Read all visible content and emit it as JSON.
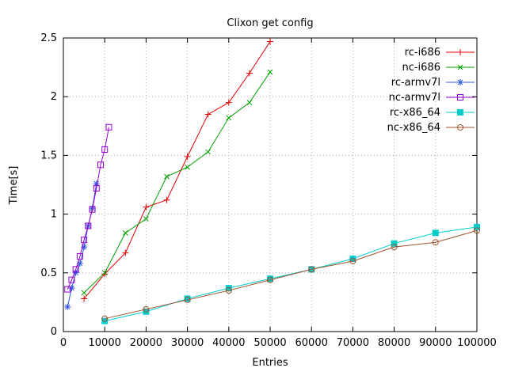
{
  "chart_data": {
    "type": "line",
    "title": "Clixon get config",
    "xlabel": "Entries",
    "ylabel": "Time[s]",
    "xlim": [
      0,
      100000
    ],
    "ylim": [
      0,
      2.5
    ],
    "xticks": [
      0,
      10000,
      20000,
      30000,
      40000,
      50000,
      60000,
      70000,
      80000,
      90000,
      100000
    ],
    "xtick_labels": [
      "0",
      "10000",
      "20000",
      "30000",
      "40000",
      "50000",
      "60000",
      "70000",
      "80000",
      "90000",
      "100000"
    ],
    "yticks": [
      0,
      0.5,
      1,
      1.5,
      2,
      2.5
    ],
    "ytick_labels": [
      "0",
      "0.5",
      "1",
      "1.5",
      "2",
      "2.5"
    ],
    "grid": true,
    "legend_position": "top-right",
    "series": [
      {
        "name": "rc-i686",
        "color": "#e00000",
        "marker": "plus",
        "x": [
          5000,
          10000,
          15000,
          20000,
          25000,
          30000,
          35000,
          40000,
          45000,
          50000
        ],
        "y": [
          0.28,
          0.49,
          0.67,
          1.06,
          1.12,
          1.49,
          1.85,
          1.95,
          2.2,
          2.47
        ]
      },
      {
        "name": "nc-i686",
        "color": "#00a000",
        "marker": "cross",
        "x": [
          5000,
          10000,
          15000,
          20000,
          25000,
          30000,
          35000,
          40000,
          45000,
          50000
        ],
        "y": [
          0.33,
          0.5,
          0.84,
          0.96,
          1.32,
          1.4,
          1.53,
          1.82,
          1.95,
          2.21
        ]
      },
      {
        "name": "rc-armv7l",
        "color": "#3355dd",
        "marker": "asterisk",
        "x": [
          1000,
          2000,
          3000,
          4000,
          5000,
          6000,
          7000,
          8000
        ],
        "y": [
          0.21,
          0.37,
          0.5,
          0.58,
          0.72,
          0.9,
          1.05,
          1.26
        ]
      },
      {
        "name": "nc-armv7l",
        "color": "#9400d3",
        "marker": "square-open",
        "x": [
          1000,
          2000,
          3000,
          4000,
          5000,
          6000,
          7000,
          8000,
          9000,
          10000,
          11000
        ],
        "y": [
          0.36,
          0.44,
          0.53,
          0.64,
          0.78,
          0.9,
          1.04,
          1.22,
          1.42,
          1.55,
          1.74
        ]
      },
      {
        "name": "rc-x86_64",
        "color": "#00cccc",
        "marker": "square-filled",
        "x": [
          10000,
          20000,
          30000,
          40000,
          50000,
          60000,
          70000,
          80000,
          90000,
          100000
        ],
        "y": [
          0.09,
          0.17,
          0.28,
          0.37,
          0.45,
          0.53,
          0.62,
          0.75,
          0.84,
          0.89
        ]
      },
      {
        "name": "nc-x86_64",
        "color": "#a0522d",
        "marker": "circle-open",
        "x": [
          10000,
          20000,
          30000,
          40000,
          50000,
          60000,
          70000,
          80000,
          90000,
          100000
        ],
        "y": [
          0.11,
          0.19,
          0.27,
          0.35,
          0.44,
          0.53,
          0.6,
          0.72,
          0.76,
          0.86
        ]
      }
    ]
  }
}
